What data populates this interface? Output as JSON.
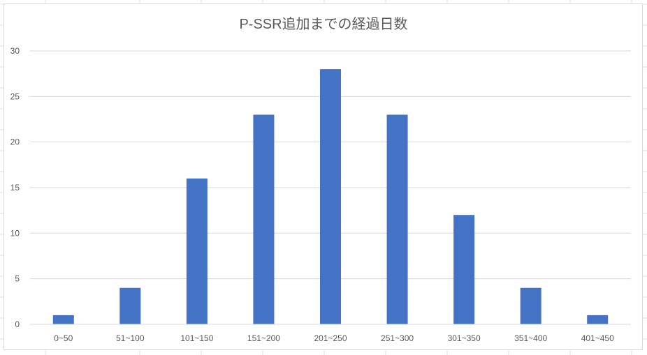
{
  "chart_data": {
    "type": "bar",
    "title": "P-SSR追加までの経過日数",
    "categories": [
      "0~50",
      "51~100",
      "101~150",
      "151~200",
      "201~250",
      "251~300",
      "301~350",
      "351~400",
      "401~450"
    ],
    "values": [
      1,
      4,
      16,
      23,
      28,
      23,
      12,
      4,
      1
    ],
    "xlabel": "",
    "ylabel": "",
    "ylim": [
      0,
      30
    ],
    "yticks": [
      0,
      5,
      10,
      15,
      20,
      25,
      30
    ],
    "grid": true,
    "legend": "none",
    "bar_color": "#4472c4"
  }
}
